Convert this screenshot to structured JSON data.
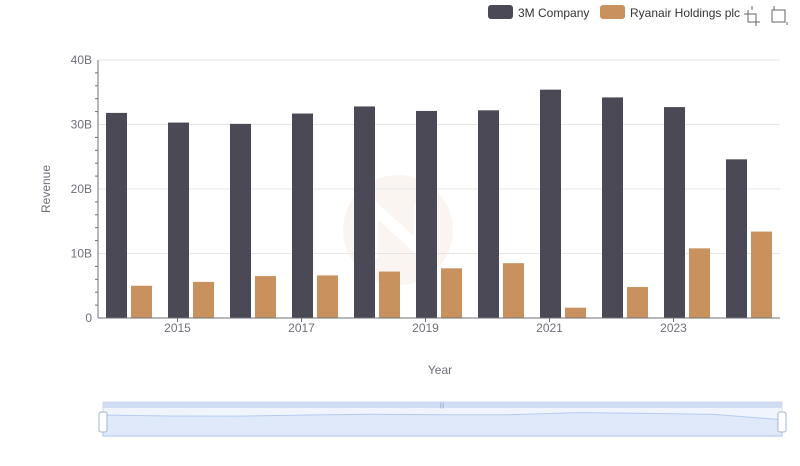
{
  "chart_data": {
    "type": "bar",
    "title": "",
    "xlabel": "Year",
    "ylabel": "Revenue",
    "categories": [
      "2014",
      "2015",
      "2016",
      "2017",
      "2018",
      "2019",
      "2020",
      "2021",
      "2022",
      "2023",
      "2024"
    ],
    "x_tick_labels": [
      "2015",
      "2017",
      "2019",
      "2021",
      "2023"
    ],
    "y_tick_labels": [
      "0",
      "10B",
      "20B",
      "30B",
      "40B"
    ],
    "ylim": [
      0,
      40000000000
    ],
    "grid": true,
    "legend_position": "top-right",
    "series": [
      {
        "name": "3M Company",
        "color": "#4a4955",
        "values": [
          31800000000,
          30300000000,
          30100000000,
          31700000000,
          32800000000,
          32100000000,
          32200000000,
          35400000000,
          34200000000,
          32700000000,
          24600000000
        ]
      },
      {
        "name": "Ryanair Holdings plc",
        "color": "#c8915e",
        "values": [
          5000000000,
          5600000000,
          6500000000,
          6600000000,
          7200000000,
          7700000000,
          8500000000,
          1600000000,
          4800000000,
          10800000000,
          13400000000
        ]
      }
    ],
    "zoom_range": [
      0,
      100
    ]
  },
  "toolbar": {
    "zoom_icon": "zoom-select-icon",
    "restore_icon": "restore-icon"
  }
}
